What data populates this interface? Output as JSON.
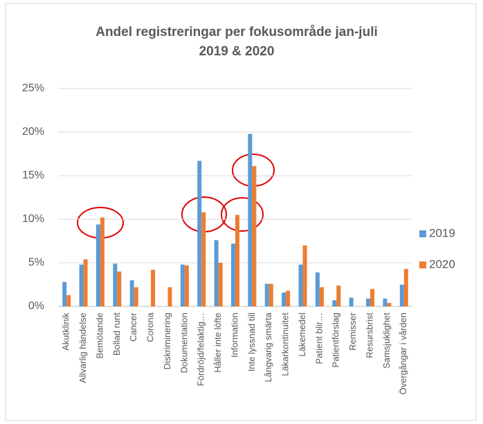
{
  "chart_data": {
    "type": "bar",
    "title": [
      "Andel registreringar per fokusområde jan-juli",
      "2019 & 2020"
    ],
    "categories": [
      "Akutklinik",
      "Allvarlig händelse",
      "Bemötande",
      "Bollad runt",
      "Cancer",
      "Corona",
      "Diskriminering",
      "Dokumentation",
      "Fördröjd/felaktig…",
      "Håller inte löfte",
      "Information",
      "Inte lyssnad till",
      "Långvarig smärta",
      "Läkarkontinuitet",
      "Läkemedel",
      "Patient blir…",
      "Patientförslag",
      "Remisser",
      "Resursbrist",
      "Samsjuklighet",
      "Övergångar i vården"
    ],
    "series": [
      {
        "name": "2019",
        "color": "#5b9bd5",
        "values": [
          2.8,
          4.8,
          9.4,
          4.9,
          3.0,
          0,
          0,
          4.8,
          16.7,
          7.6,
          7.2,
          19.8,
          2.6,
          1.6,
          4.8,
          3.9,
          0.7,
          1.0,
          0.9,
          0.9,
          2.5
        ]
      },
      {
        "name": "2020",
        "color": "#ed7d31",
        "values": [
          1.3,
          5.4,
          10.2,
          4.0,
          2.2,
          4.2,
          2.2,
          4.7,
          10.8,
          5.0,
          10.5,
          16.1,
          2.6,
          1.8,
          7.0,
          2.2,
          2.4,
          0,
          2.0,
          0.4,
          4.3
        ]
      }
    ],
    "ylim": [
      0,
      25
    ],
    "yticks": [
      {
        "value": 0,
        "label": "0%"
      },
      {
        "value": 5,
        "label": "5%"
      },
      {
        "value": 10,
        "label": "10%"
      },
      {
        "value": 15,
        "label": "15%"
      },
      {
        "value": 20,
        "label": "20%"
      },
      {
        "value": 25,
        "label": "25%"
      }
    ],
    "grid": true,
    "legend": "right"
  }
}
